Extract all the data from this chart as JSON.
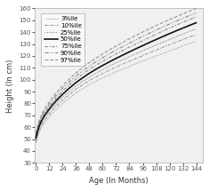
{
  "title": "",
  "xlabel": "Age (In Months)",
  "ylabel": "Height (In cm)",
  "xlim": [
    -1,
    150
  ],
  "ylim": [
    30,
    160
  ],
  "xticks": [
    0,
    12,
    24,
    36,
    48,
    60,
    72,
    84,
    96,
    108,
    120,
    132,
    144
  ],
  "yticks": [
    30,
    40,
    50,
    60,
    70,
    80,
    90,
    100,
    110,
    120,
    130,
    140,
    150,
    160
  ],
  "percentiles": [
    "3%ile",
    "10%ile",
    "25%ile",
    "50%ile",
    "75%ile",
    "90%ile",
    "97%ile"
  ],
  "line_styles": [
    [
      1,
      [
        1,
        1.5
      ]
    ],
    [
      0,
      [
        3,
        1.5,
        1,
        1.5
      ]
    ],
    [
      0,
      [
        1,
        1.2
      ]
    ],
    "solid",
    [
      0,
      [
        3,
        1.5,
        1,
        1.5
      ]
    ],
    [
      0,
      [
        4,
        1.5,
        1,
        1.5,
        1,
        1.5
      ]
    ],
    [
      0,
      [
        4,
        2
      ]
    ]
  ],
  "line_widths": [
    0.7,
    0.7,
    0.8,
    1.2,
    0.8,
    0.8,
    0.7
  ],
  "line_colors": [
    "#888888",
    "#888888",
    "#888888",
    "#111111",
    "#888888",
    "#888888",
    "#888888"
  ],
  "percentile_data": {
    "ages": [
      0,
      1,
      2,
      3,
      4,
      5,
      6,
      7,
      8,
      9,
      10,
      11,
      12,
      15,
      18,
      21,
      24,
      30,
      36,
      42,
      48,
      54,
      60,
      66,
      72,
      78,
      84,
      90,
      96,
      102,
      108,
      114,
      120,
      126,
      132,
      138,
      144
    ],
    "p3": [
      46.1,
      49.9,
      53.0,
      55.6,
      57.8,
      59.6,
      61.2,
      62.7,
      64.0,
      65.3,
      66.5,
      67.6,
      68.9,
      72.0,
      74.9,
      77.5,
      80.0,
      84.6,
      88.7,
      92.4,
      95.8,
      98.8,
      101.5,
      104.1,
      106.6,
      108.9,
      111.2,
      113.5,
      115.7,
      117.9,
      120.0,
      122.1,
      124.2,
      126.3,
      128.4,
      130.4,
      132.4
    ],
    "p10": [
      47.9,
      51.7,
      54.9,
      57.5,
      59.7,
      61.6,
      63.3,
      64.8,
      66.2,
      67.5,
      68.7,
      69.9,
      71.3,
      74.5,
      77.5,
      80.2,
      82.8,
      87.6,
      91.9,
      95.7,
      99.3,
      102.4,
      105.3,
      108.0,
      110.6,
      113.1,
      115.5,
      117.9,
      120.3,
      122.6,
      124.9,
      127.2,
      129.4,
      131.6,
      133.8,
      135.9,
      138.0
    ],
    "p25": [
      49.5,
      53.4,
      56.6,
      59.2,
      61.5,
      63.4,
      65.1,
      66.7,
      68.1,
      69.4,
      70.7,
      71.9,
      73.3,
      76.6,
      79.7,
      82.5,
      85.2,
      90.1,
      94.6,
      98.5,
      102.2,
      105.5,
      108.5,
      111.4,
      114.1,
      116.8,
      119.4,
      121.9,
      124.4,
      126.8,
      129.2,
      131.5,
      133.9,
      136.2,
      138.4,
      140.6,
      142.7
    ],
    "p50": [
      51.0,
      55.0,
      58.4,
      61.0,
      63.3,
      65.3,
      67.1,
      68.7,
      70.1,
      71.5,
      72.8,
      74.0,
      75.4,
      78.9,
      82.1,
      85.0,
      87.8,
      92.9,
      97.6,
      101.6,
      105.4,
      108.8,
      112.0,
      115.0,
      117.9,
      120.7,
      123.4,
      126.1,
      128.7,
      131.3,
      133.8,
      136.3,
      138.7,
      141.1,
      143.4,
      145.7,
      147.9
    ],
    "p75": [
      52.5,
      56.6,
      60.1,
      62.8,
      65.2,
      67.2,
      69.0,
      70.7,
      72.2,
      73.6,
      74.9,
      76.2,
      77.6,
      81.2,
      84.5,
      87.5,
      90.4,
      95.7,
      100.6,
      104.8,
      108.7,
      112.2,
      115.5,
      118.7,
      121.7,
      124.6,
      127.4,
      130.2,
      132.9,
      135.6,
      138.3,
      140.9,
      143.4,
      145.9,
      148.3,
      150.6,
      152.9
    ],
    "p90": [
      53.8,
      58.0,
      61.5,
      64.3,
      66.7,
      68.8,
      70.7,
      72.4,
      73.9,
      75.4,
      76.7,
      78.0,
      79.5,
      83.2,
      86.6,
      89.7,
      92.7,
      98.1,
      103.2,
      107.5,
      111.5,
      115.1,
      118.5,
      121.8,
      124.9,
      127.9,
      130.8,
      133.7,
      136.4,
      139.1,
      141.7,
      144.3,
      146.8,
      149.3,
      151.7,
      154.0,
      156.2
    ],
    "p97": [
      55.2,
      59.4,
      63.0,
      65.8,
      68.3,
      70.4,
      72.3,
      74.1,
      75.7,
      77.2,
      78.6,
      79.9,
      81.4,
      85.2,
      88.7,
      91.9,
      95.0,
      100.6,
      105.8,
      110.3,
      114.4,
      118.2,
      121.7,
      125.1,
      128.3,
      131.4,
      134.4,
      137.3,
      140.1,
      142.8,
      145.5,
      148.1,
      150.6,
      153.0,
      155.4,
      157.6,
      159.8
    ]
  },
  "legend_fontsize": 5.0,
  "axis_fontsize": 6.0,
  "tick_fontsize": 5.0,
  "plot_bg_color": "#f0f0f0",
  "background_color": "#ffffff"
}
